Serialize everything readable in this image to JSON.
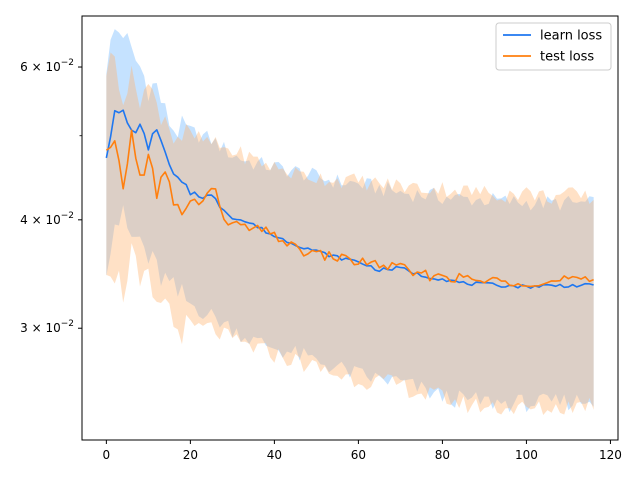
{
  "chart_data": {
    "type": "line",
    "title": "",
    "xlabel": "",
    "ylabel": "",
    "xlim": [
      -5.8,
      121.8
    ],
    "ylim": [
      0.0223,
      0.0687
    ],
    "yscale": "log",
    "grid": false,
    "legend_position": "top-right",
    "x_ticks": [
      {
        "value": 0,
        "label": "0"
      },
      {
        "value": 20,
        "label": "20"
      },
      {
        "value": 40,
        "label": "40"
      },
      {
        "value": 60,
        "label": "60"
      },
      {
        "value": 80,
        "label": "80"
      },
      {
        "value": 100,
        "label": "100"
      },
      {
        "value": 120,
        "label": "120"
      }
    ],
    "y_ticks": [
      {
        "value": 0.03,
        "mantissa": "3",
        "times": "×",
        "base": "10",
        "exp": "−2"
      },
      {
        "value": 0.04,
        "mantissa": "4",
        "times": "×",
        "base": "10",
        "exp": "−2"
      },
      {
        "value": 0.06,
        "mantissa": "6",
        "times": "×",
        "base": "10",
        "exp": "−2"
      }
    ],
    "y_minor_ticks": [
      0.05
    ],
    "x_keypoints": [
      0,
      2,
      4,
      6,
      8,
      10,
      12,
      14,
      16,
      20,
      25,
      30,
      35,
      40,
      45,
      50,
      55,
      60,
      65,
      70,
      75,
      80,
      85,
      90,
      95,
      100,
      105,
      110,
      116
    ],
    "series": [
      {
        "name": "learn loss",
        "color": "#1f77f0",
        "band_color": "#7fbfff",
        "mean": [
          0.0475,
          0.053,
          0.0532,
          0.0505,
          0.0512,
          0.0485,
          0.0512,
          0.0475,
          0.045,
          0.043,
          0.0425,
          0.0403,
          0.0395,
          0.0383,
          0.0375,
          0.0368,
          0.0362,
          0.0358,
          0.035,
          0.0352,
          0.0345,
          0.0342,
          0.0338,
          0.0337,
          0.0336,
          0.0335,
          0.0336,
          0.0336,
          0.0336
        ],
        "upper": [
          0.0605,
          0.066,
          0.066,
          0.062,
          0.06,
          0.057,
          0.057,
          0.053,
          0.051,
          0.0505,
          0.0495,
          0.0475,
          0.0465,
          0.046,
          0.0455,
          0.0448,
          0.0443,
          0.044,
          0.0435,
          0.043,
          0.0428,
          0.0425,
          0.0423,
          0.0422,
          0.042,
          0.0419,
          0.0418,
          0.0418,
          0.0417
        ],
        "lower": [
          0.036,
          0.04,
          0.04,
          0.038,
          0.038,
          0.036,
          0.035,
          0.034,
          0.033,
          0.032,
          0.031,
          0.03,
          0.029,
          0.0285,
          0.028,
          0.0275,
          0.027,
          0.0265,
          0.0262,
          0.026,
          0.0255,
          0.025,
          0.0248,
          0.0247,
          0.0246,
          0.0246,
          0.0246,
          0.0247,
          0.0248
        ]
      },
      {
        "name": "test loss",
        "color": "#ff7f0e",
        "band_color": "#ffb570",
        "mean": [
          0.0475,
          0.048,
          0.044,
          0.05,
          0.0445,
          0.048,
          0.042,
          0.046,
          0.041,
          0.0415,
          0.043,
          0.0395,
          0.039,
          0.0385,
          0.037,
          0.0365,
          0.0362,
          0.0358,
          0.0355,
          0.0352,
          0.0345,
          0.0345,
          0.0342,
          0.034,
          0.034,
          0.034,
          0.0338,
          0.0342,
          0.0338
        ],
        "upper": [
          0.06,
          0.0615,
          0.056,
          0.058,
          0.056,
          0.057,
          0.054,
          0.053,
          0.05,
          0.05,
          0.049,
          0.048,
          0.047,
          0.046,
          0.0452,
          0.0448,
          0.0445,
          0.0443,
          0.044,
          0.0438,
          0.0435,
          0.0435,
          0.0432,
          0.043,
          0.0428,
          0.043,
          0.0425,
          0.0428,
          0.0423
        ],
        "lower": [
          0.036,
          0.035,
          0.033,
          0.037,
          0.033,
          0.034,
          0.031,
          0.033,
          0.03,
          0.03,
          0.03,
          0.029,
          0.0285,
          0.028,
          0.0275,
          0.027,
          0.0265,
          0.0262,
          0.026,
          0.0258,
          0.0252,
          0.025,
          0.0245,
          0.0244,
          0.0243,
          0.0242,
          0.0242,
          0.0244,
          0.0246
        ]
      }
    ],
    "legend": [
      {
        "label": "learn loss",
        "color": "#1f77f0"
      },
      {
        "label": "test loss",
        "color": "#ff7f0e"
      }
    ]
  }
}
